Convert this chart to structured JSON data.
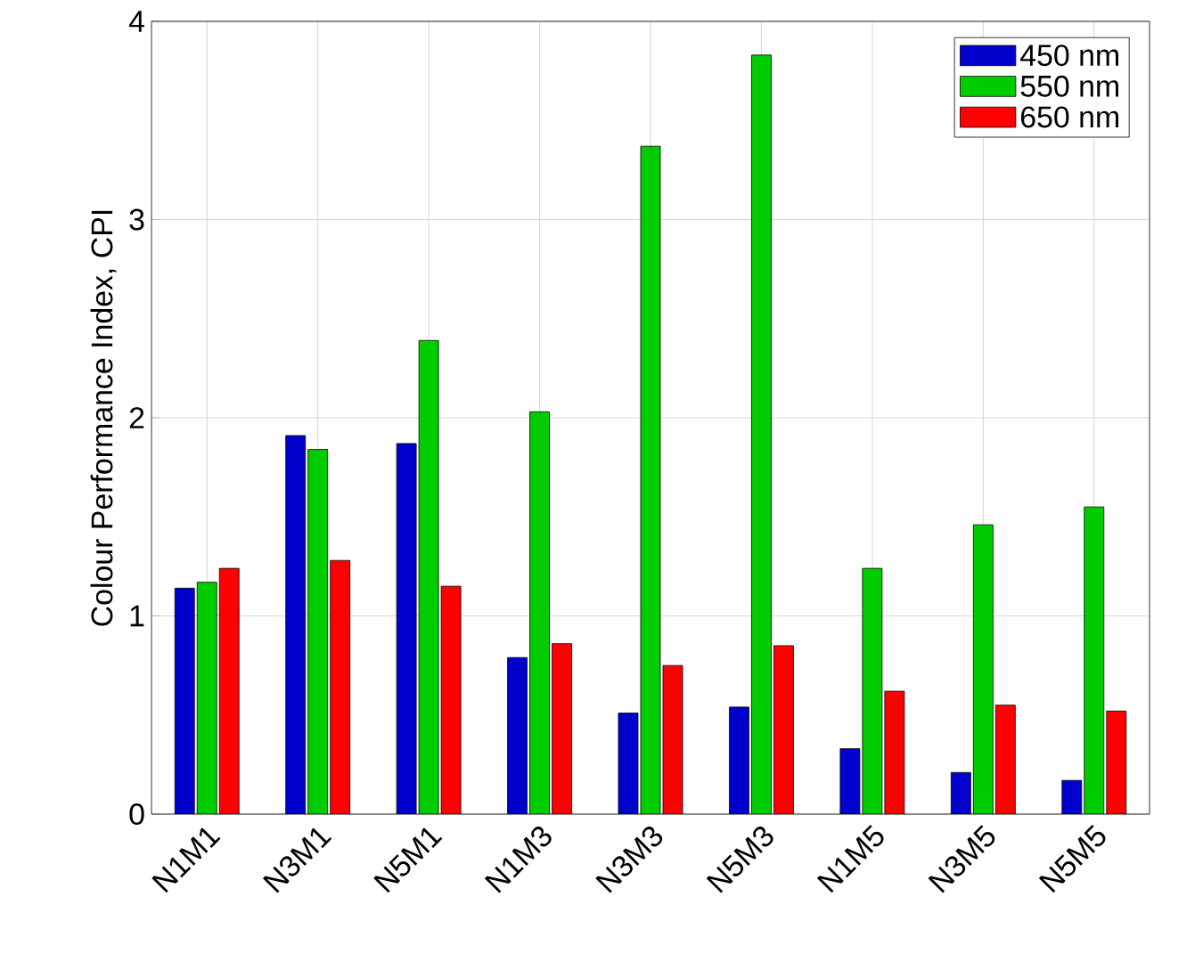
{
  "chart_data": {
    "type": "bar",
    "ylabel": "Colour Performance Index, CPI",
    "categories": [
      "N1M1",
      "N3M1",
      "N5M1",
      "N1M3",
      "N3M3",
      "N5M3",
      "N1M5",
      "N3M5",
      "N5M5"
    ],
    "series": [
      {
        "name": "450 nm",
        "color": "#0000cc",
        "values": [
          1.14,
          1.91,
          1.87,
          0.79,
          0.51,
          0.54,
          0.33,
          0.21,
          0.17
        ]
      },
      {
        "name": "550 nm",
        "color": "#00cc00",
        "values": [
          1.17,
          1.84,
          2.39,
          2.03,
          3.37,
          3.83,
          1.24,
          1.46,
          1.55
        ]
      },
      {
        "name": "650 nm",
        "color": "#ff0000",
        "values": [
          1.24,
          1.28,
          1.15,
          0.86,
          0.75,
          0.85,
          0.62,
          0.55,
          0.52
        ]
      }
    ],
    "ylim": [
      0,
      4
    ],
    "yticks": [
      0,
      1,
      2,
      3,
      4
    ],
    "grid": true,
    "legend": "top right"
  }
}
